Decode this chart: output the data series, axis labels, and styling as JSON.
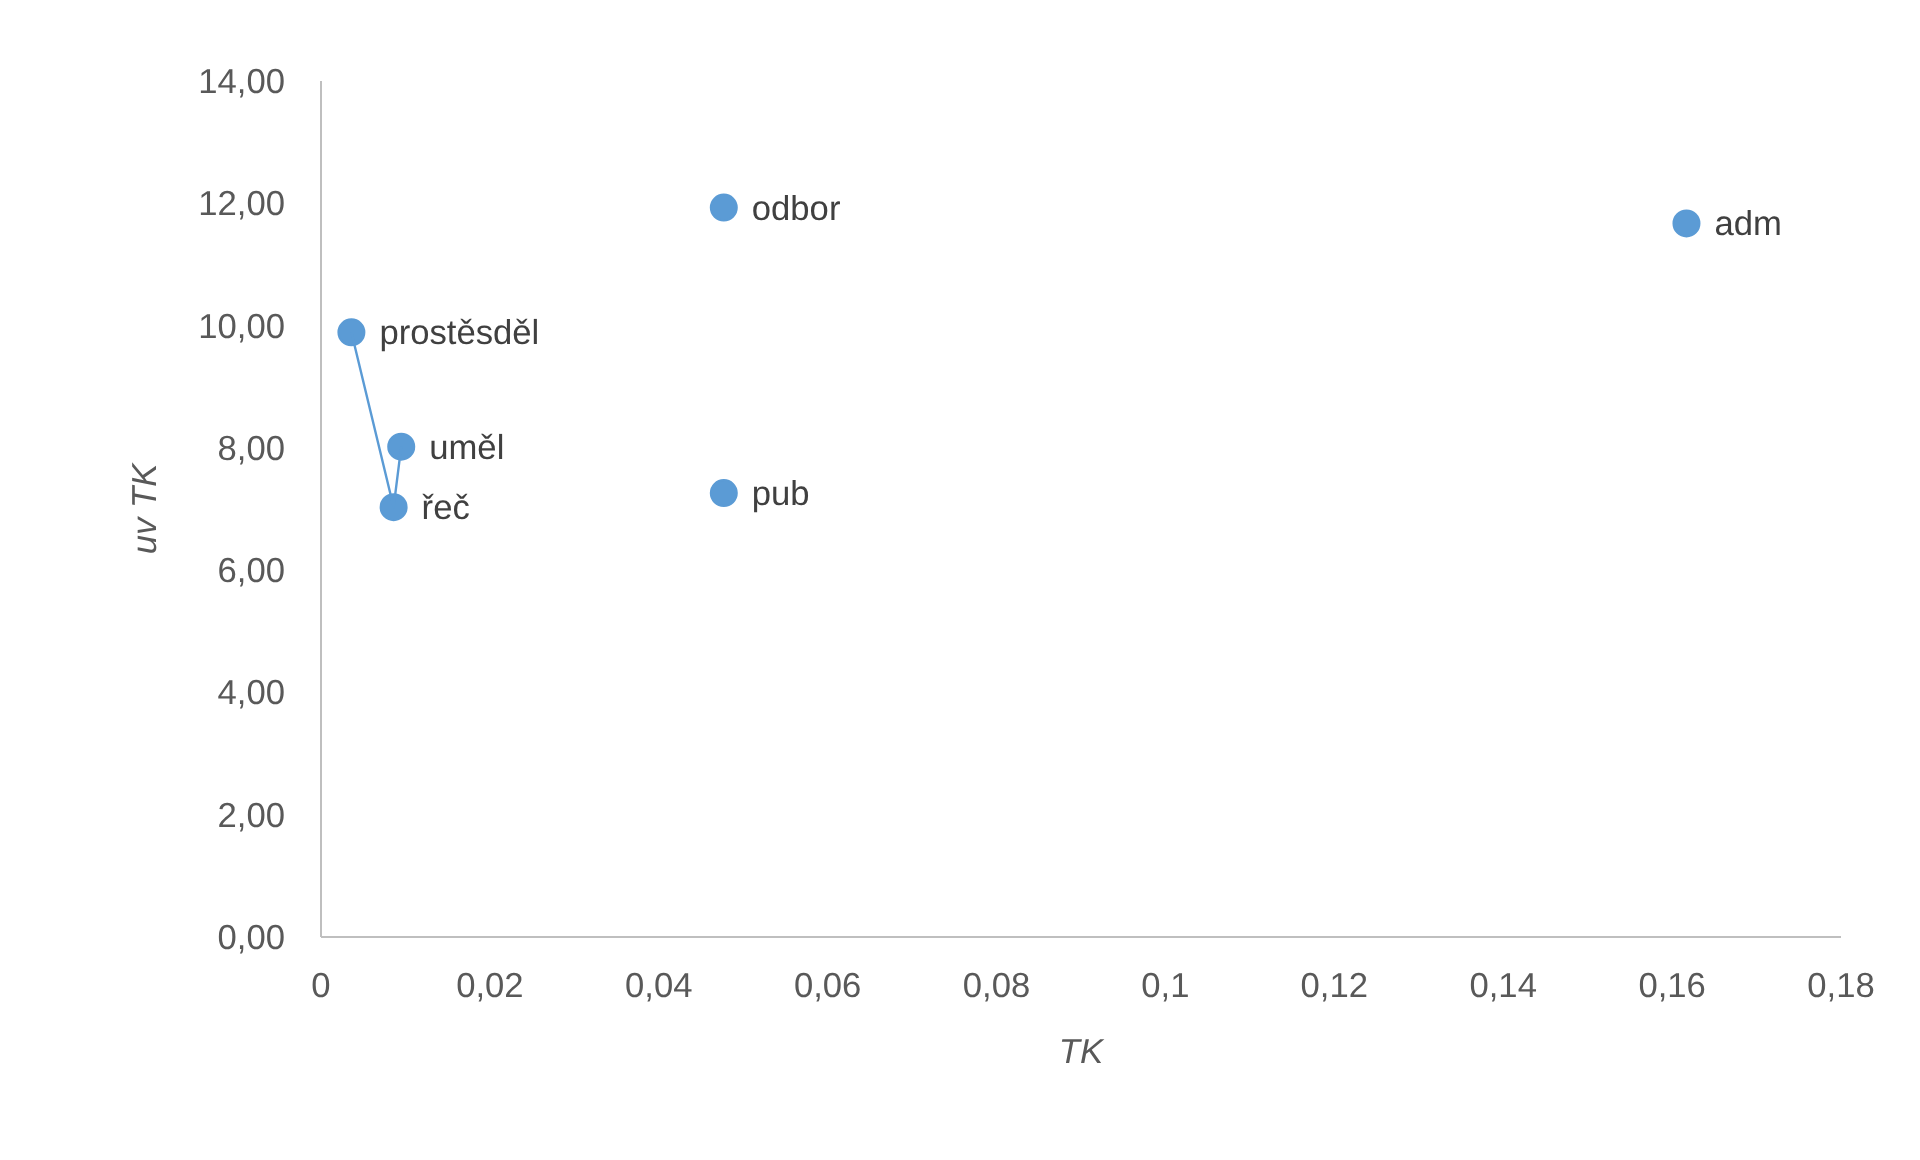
{
  "chart_data": {
    "type": "scatter",
    "xlabel": "TK",
    "ylabel": "uv TK",
    "marker": "circle",
    "grid": false,
    "series": [
      {
        "color": "#5b9bd5",
        "x": [
          0.0036,
          0.0086,
          0.0095,
          0.0477,
          0.0477,
          0.1617
        ],
        "values": [
          9.89,
          7.03,
          8.02,
          11.93,
          7.26,
          11.67
        ]
      },
      {
        "type": "line",
        "marker": "none",
        "color": "#5b9bd5",
        "x": [
          0.0036,
          0.0086,
          0.0095
        ],
        "values": [
          9.89,
          7.03,
          8.02
        ]
      }
    ],
    "annotations": [
      {
        "text": "prostěsděl",
        "x": 0.0036,
        "y": 9.89
      },
      {
        "text": "řeč",
        "x": 0.0086,
        "y": 7.03
      },
      {
        "text": "uměl",
        "x": 0.0095,
        "y": 8.02
      },
      {
        "text": "odbor",
        "x": 0.0477,
        "y": 11.93
      },
      {
        "text": "pub",
        "x": 0.0477,
        "y": 7.26
      },
      {
        "text": "adm",
        "x": 0.1617,
        "y": 11.67
      }
    ],
    "xlim": [
      0,
      0.18
    ],
    "ylim": [
      0,
      14
    ],
    "xticks": [
      {
        "value": 0,
        "label": "0"
      },
      {
        "value": 0.02,
        "label": "0,02"
      },
      {
        "value": 0.04,
        "label": "0,04"
      },
      {
        "value": 0.06,
        "label": "0,06"
      },
      {
        "value": 0.08,
        "label": "0,08"
      },
      {
        "value": 0.1,
        "label": "0,1"
      },
      {
        "value": 0.12,
        "label": "0,12"
      },
      {
        "value": 0.14,
        "label": "0,14"
      },
      {
        "value": 0.16,
        "label": "0,16"
      },
      {
        "value": 0.18,
        "label": "0,18"
      }
    ],
    "yticks": [
      {
        "value": 0,
        "label": "0,00"
      },
      {
        "value": 2,
        "label": "2,00"
      },
      {
        "value": 4,
        "label": "4,00"
      },
      {
        "value": 6,
        "label": "6,00"
      },
      {
        "value": 8,
        "label": "8,00"
      },
      {
        "value": 10,
        "label": "10,00"
      },
      {
        "value": 12,
        "label": "12,00"
      },
      {
        "value": 14,
        "label": "14,00"
      }
    ]
  }
}
